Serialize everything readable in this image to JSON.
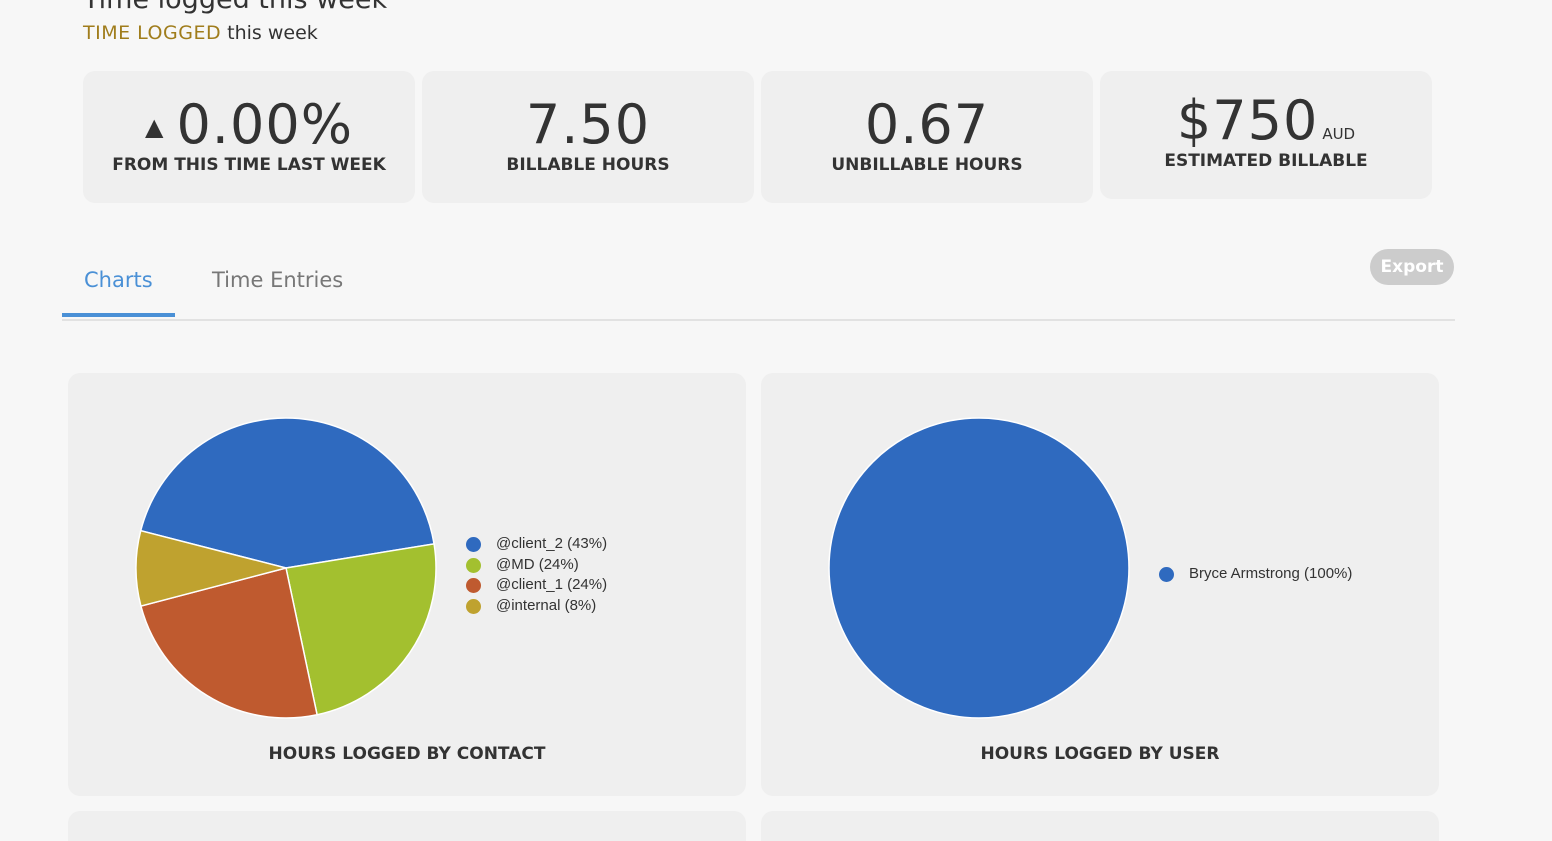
{
  "header": {
    "title": "Time logged this week",
    "subtitle_accent": "TIME LOGGED",
    "subtitle_rest": "this week"
  },
  "stats": [
    {
      "value": "0.00%",
      "label": "FROM THIS TIME LAST WEEK",
      "arrow": "▲"
    },
    {
      "value": "7.50",
      "label": "BILLABLE HOURS"
    },
    {
      "value": "0.67",
      "label": "UNBILLABLE HOURS"
    },
    {
      "value": "$750",
      "unit": "AUD",
      "label": "ESTIMATED BILLABLE"
    }
  ],
  "tabs": {
    "charts": "Charts",
    "time_entries": "Time Entries",
    "active": "Charts"
  },
  "export_label": "Export",
  "colors": {
    "accent": "#a07d1c",
    "tab_active": "#4a90d6",
    "card_bg": "#efefef"
  },
  "chart_data": [
    {
      "type": "pie",
      "title": "HOURS LOGGED BY CONTACT",
      "series": [
        {
          "label": "@client_2 (43%)",
          "value": 43,
          "color": "#2f6abf"
        },
        {
          "label": "@MD (24%)",
          "value": 24,
          "color": "#a3c02f"
        },
        {
          "label": "@client_1 (24%)",
          "value": 24,
          "color": "#bf5a2f"
        },
        {
          "label": "@internal (8%)",
          "value": 8,
          "color": "#bfa22f"
        }
      ],
      "legend": "right"
    },
    {
      "type": "pie",
      "title": "HOURS LOGGED BY USER",
      "series": [
        {
          "label": "Bryce Armstrong (100%)",
          "value": 100,
          "color": "#2f6abf"
        }
      ],
      "legend": "right"
    }
  ]
}
